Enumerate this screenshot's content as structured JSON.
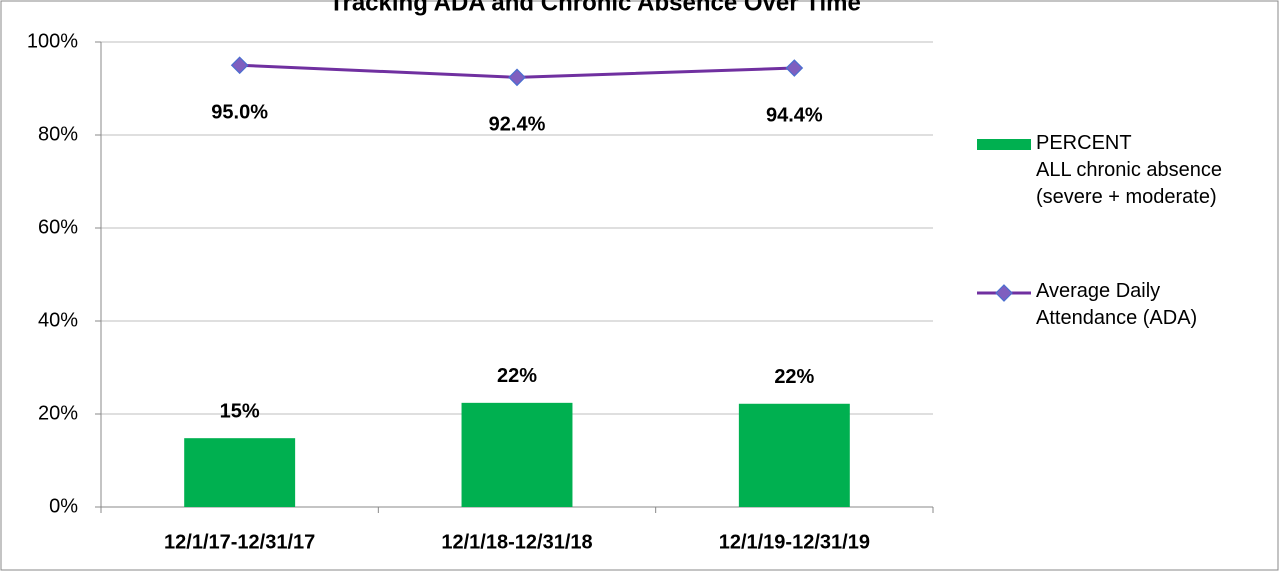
{
  "chart_data": {
    "type": "bar+line",
    "title": "Tracking ADA and Chronic Absence Over Time",
    "categories": [
      "12/1/17-12/31/17",
      "12/1/18-12/31/18",
      "12/1/19-12/31/19"
    ],
    "series": [
      {
        "name": "PERCENT\nALL chronic absence\n(severe + moderate)",
        "type": "bar",
        "color": "#00b050",
        "values": [
          14.8,
          22.4,
          22.2
        ],
        "value_labels": [
          "15%",
          "22%",
          "22%"
        ]
      },
      {
        "name": "Average Daily\nAttendance (ADA)",
        "type": "line",
        "color": "#7030a0",
        "marker_color": "#7f5fbf",
        "values": [
          95.0,
          92.4,
          94.4
        ],
        "value_labels": [
          "95.0%",
          "92.4%",
          "94.4%"
        ]
      }
    ],
    "ylim": [
      0,
      100
    ],
    "yticks": [
      {
        "value": 0,
        "label": "0%"
      },
      {
        "value": 20,
        "label": "20%"
      },
      {
        "value": 40,
        "label": "40%"
      },
      {
        "value": 60,
        "label": "60%"
      },
      {
        "value": 80,
        "label": "80%"
      },
      {
        "value": 100,
        "label": "100%"
      }
    ],
    "grid": true,
    "legend": "right"
  }
}
